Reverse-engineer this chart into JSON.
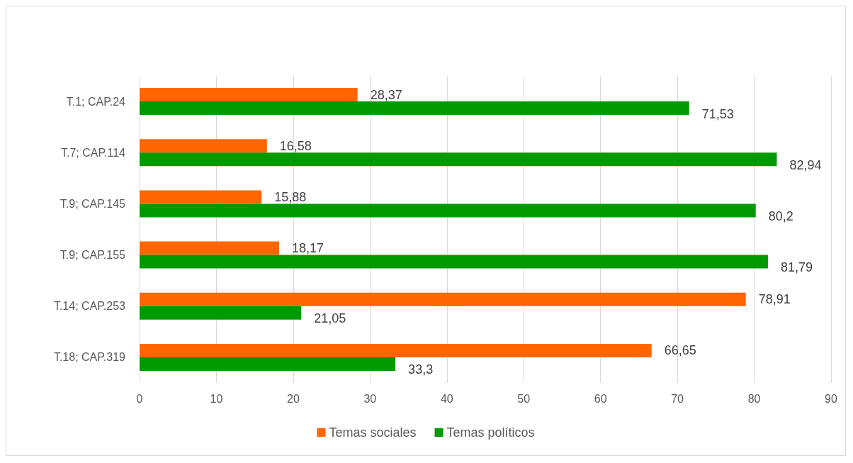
{
  "chart_data": {
    "type": "bar",
    "orientation": "horizontal",
    "categories": [
      "T.1; CAP.24",
      "T.7; CAP.114",
      "T.9; CAP.145",
      "T.9; CAP.155",
      "T.14; CAP.253",
      "T.18; CAP.319"
    ],
    "series": [
      {
        "name": "Temas sociales",
        "color": "#ff6600",
        "values": [
          28.37,
          16.58,
          15.88,
          18.17,
          78.91,
          66.65
        ],
        "value_labels": [
          "28,37",
          "16,58",
          "15,88",
          "18,17",
          "78,91",
          "66,65"
        ]
      },
      {
        "name": "Temas políticos",
        "color": "#009900",
        "values": [
          71.53,
          82.94,
          80.2,
          81.79,
          21.05,
          33.3
        ],
        "value_labels": [
          "71,53",
          "82,94",
          "80,2",
          "81,79",
          "21,05",
          "33,3"
        ]
      }
    ],
    "xlim": [
      0,
      90
    ],
    "xticks": [
      0,
      10,
      20,
      30,
      40,
      50,
      60,
      70,
      80,
      90
    ],
    "grid": "x",
    "legend": "bottom"
  }
}
